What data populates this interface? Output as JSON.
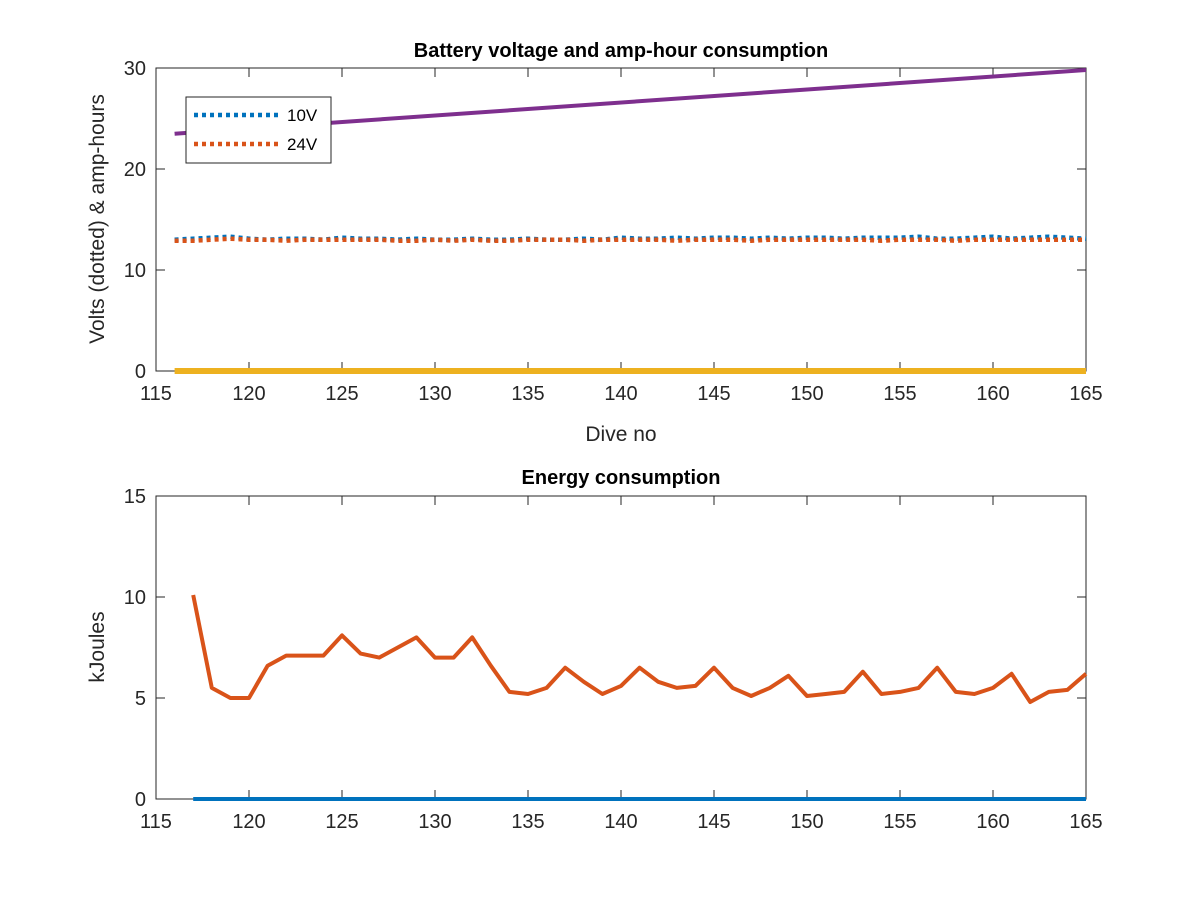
{
  "chart_data": [
    {
      "type": "line",
      "title": "Battery voltage and amp-hour consumption",
      "xlabel": "Dive no",
      "ylabel": "Volts (dotted) & amp-hours",
      "xlim": [
        115,
        165
      ],
      "ylim": [
        0,
        30
      ],
      "xticks": [
        "115",
        "120",
        "125",
        "130",
        "135",
        "140",
        "145",
        "150",
        "155",
        "160",
        "165"
      ],
      "yticks": [
        "0",
        "10",
        "20",
        "30"
      ],
      "legend_location": "top-left",
      "series": [
        {
          "name": "10V",
          "style": "dotted",
          "color": "#0072BD",
          "x": [
            116,
            117,
            118,
            119,
            120,
            121,
            122,
            123,
            124,
            125,
            126,
            127,
            128,
            129,
            130,
            131,
            132,
            133,
            134,
            135,
            136,
            137,
            138,
            139,
            140,
            141,
            142,
            143,
            144,
            145,
            146,
            147,
            148,
            149,
            150,
            151,
            152,
            153,
            154,
            155,
            156,
            157,
            158,
            159,
            160,
            161,
            162,
            163,
            164,
            165
          ],
          "y": [
            13.0,
            13.1,
            13.2,
            13.3,
            13.1,
            13.0,
            13.1,
            13.1,
            13.0,
            13.2,
            13.1,
            13.1,
            13.0,
            13.1,
            13.0,
            13.0,
            13.1,
            13.0,
            13.0,
            13.1,
            13.0,
            13.0,
            13.1,
            13.0,
            13.2,
            13.1,
            13.1,
            13.2,
            13.1,
            13.2,
            13.2,
            13.1,
            13.2,
            13.1,
            13.2,
            13.2,
            13.1,
            13.2,
            13.2,
            13.2,
            13.3,
            13.1,
            13.1,
            13.2,
            13.3,
            13.1,
            13.2,
            13.3,
            13.2,
            13.1
          ]
        },
        {
          "name": "24V",
          "style": "dotted",
          "color": "#D95319",
          "x": [
            116,
            117,
            118,
            119,
            120,
            121,
            122,
            123,
            124,
            125,
            126,
            127,
            128,
            129,
            130,
            131,
            132,
            133,
            134,
            135,
            136,
            137,
            138,
            139,
            140,
            141,
            142,
            143,
            144,
            145,
            146,
            147,
            148,
            149,
            150,
            151,
            152,
            153,
            154,
            155,
            156,
            157,
            158,
            159,
            160,
            161,
            162,
            163,
            164,
            165
          ],
          "y": [
            12.9,
            12.9,
            13.0,
            13.1,
            13.0,
            13.0,
            12.9,
            13.0,
            13.0,
            13.0,
            13.0,
            13.0,
            12.9,
            12.9,
            13.0,
            12.9,
            13.0,
            12.9,
            12.9,
            13.0,
            13.0,
            13.0,
            12.9,
            13.0,
            13.0,
            13.0,
            13.0,
            12.9,
            13.0,
            13.0,
            13.0,
            12.9,
            13.0,
            13.0,
            13.0,
            13.0,
            13.0,
            13.0,
            12.9,
            13.0,
            13.0,
            13.0,
            12.9,
            13.0,
            13.0,
            13.0,
            13.0,
            13.0,
            13.0,
            13.0
          ]
        },
        {
          "style": "solid",
          "color": "#EDB120",
          "x": [
            116,
            165
          ],
          "y": [
            0,
            0
          ]
        },
        {
          "style": "solid",
          "color": "#7E2F8E",
          "x": [
            116,
            165
          ],
          "y": [
            23.5,
            29.8
          ]
        }
      ]
    },
    {
      "type": "line",
      "title": "Energy consumption",
      "xlabel": "",
      "ylabel": "kJoules",
      "xlim": [
        115,
        165
      ],
      "ylim": [
        0,
        15
      ],
      "xticks": [
        "115",
        "120",
        "125",
        "130",
        "135",
        "140",
        "145",
        "150",
        "155",
        "160",
        "165"
      ],
      "yticks": [
        "0",
        "5",
        "10",
        "15"
      ],
      "series": [
        {
          "style": "solid",
          "color": "#0072BD",
          "x": [
            117,
            165
          ],
          "y": [
            0,
            0
          ]
        },
        {
          "style": "solid",
          "color": "#D95319",
          "x": [
            117,
            118,
            119,
            120,
            121,
            122,
            123,
            124,
            125,
            126,
            127,
            128,
            129,
            130,
            131,
            132,
            133,
            134,
            135,
            136,
            137,
            138,
            139,
            140,
            141,
            142,
            143,
            144,
            145,
            146,
            147,
            148,
            149,
            150,
            151,
            152,
            153,
            154,
            155,
            156,
            157,
            158,
            159,
            160,
            161,
            162,
            163,
            164,
            165
          ],
          "y": [
            10.1,
            5.5,
            5.0,
            5.0,
            6.6,
            7.1,
            7.1,
            7.1,
            8.1,
            7.2,
            7.0,
            7.5,
            8.0,
            7.0,
            7.0,
            8.0,
            6.6,
            5.3,
            5.2,
            5.5,
            6.5,
            5.8,
            5.2,
            5.6,
            6.5,
            5.8,
            5.5,
            5.6,
            6.5,
            5.5,
            5.1,
            5.5,
            6.1,
            5.1,
            5.2,
            5.3,
            6.3,
            5.2,
            5.3,
            5.5,
            6.5,
            5.3,
            5.2,
            5.5,
            6.2,
            4.8,
            5.3,
            5.4,
            6.2
          ]
        }
      ]
    }
  ]
}
